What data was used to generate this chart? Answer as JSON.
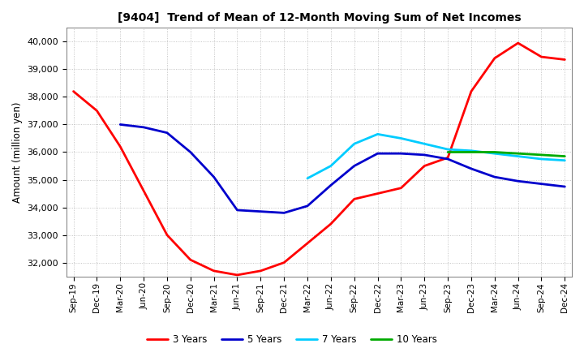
{
  "title": "[9404]  Trend of Mean of 12-Month Moving Sum of Net Incomes",
  "ylabel": "Amount (million yen)",
  "background_color": "#ffffff",
  "plot_bg_color": "#ffffff",
  "grid_color": "#999999",
  "ylim": [
    31500,
    40500
  ],
  "yticks": [
    32000,
    33000,
    34000,
    35000,
    36000,
    37000,
    38000,
    39000,
    40000
  ],
  "x_labels": [
    "Sep-19",
    "Dec-19",
    "Mar-20",
    "Jun-20",
    "Sep-20",
    "Dec-20",
    "Mar-21",
    "Jun-21",
    "Sep-21",
    "Dec-21",
    "Mar-22",
    "Jun-22",
    "Sep-22",
    "Dec-22",
    "Mar-23",
    "Jun-23",
    "Sep-23",
    "Dec-23",
    "Mar-24",
    "Jun-24",
    "Sep-24",
    "Dec-24"
  ],
  "series": {
    "3 Years": {
      "color": "#ff0000",
      "linewidth": 2.0,
      "data": [
        38200,
        37500,
        36200,
        34600,
        33000,
        32100,
        31700,
        31550,
        31700,
        32000,
        32700,
        33400,
        34300,
        34500,
        34700,
        35500,
        35800,
        38200,
        39400,
        39950,
        39450,
        39350
      ]
    },
    "5 Years": {
      "color": "#0000cc",
      "linewidth": 2.0,
      "data": [
        null,
        null,
        37000,
        36900,
        36700,
        36000,
        35100,
        33900,
        33850,
        33800,
        34050,
        34800,
        35500,
        35950,
        35950,
        35900,
        35750,
        35400,
        35100,
        34950,
        34850,
        34750
      ]
    },
    "7 Years": {
      "color": "#00ccff",
      "linewidth": 2.0,
      "data": [
        null,
        null,
        null,
        null,
        null,
        null,
        null,
        null,
        null,
        null,
        35050,
        35500,
        36300,
        36650,
        36500,
        36300,
        36100,
        36050,
        35950,
        35850,
        35750,
        35700
      ]
    },
    "10 Years": {
      "color": "#00aa00",
      "linewidth": 2.0,
      "data": [
        null,
        null,
        null,
        null,
        null,
        null,
        null,
        null,
        null,
        null,
        null,
        null,
        null,
        null,
        null,
        null,
        36000,
        36000,
        36000,
        35950,
        35900,
        35850
      ]
    }
  },
  "legend_order": [
    "3 Years",
    "5 Years",
    "7 Years",
    "10 Years"
  ]
}
